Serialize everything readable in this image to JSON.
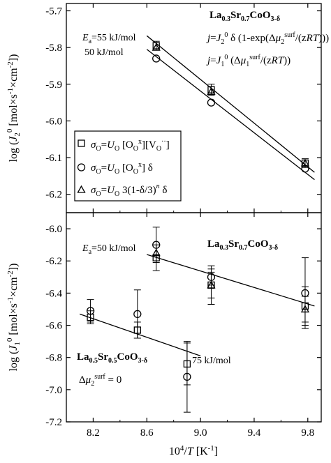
{
  "chart_data": [
    {
      "type": "scatter",
      "ylabel": "log (J₂⁰ [mol×s⁻¹×cm⁻²])",
      "xlim": [
        8.0,
        9.9
      ],
      "ylim": [
        -6.25,
        -5.68
      ],
      "y_ticks": [
        "-5.7",
        "-5.8",
        "-5.9",
        "-6.0",
        "-6.1",
        "-6.2"
      ],
      "y_tick_values": [
        -5.7,
        -5.8,
        -5.9,
        -6.0,
        -6.1,
        -6.2
      ],
      "compound": "La0.3Sr0.7CoO3-δ",
      "eq1": "j=J₂⁰ δ (1-exp(Δμ₂surf/(zRT)))",
      "eq2": "j=J₁⁰ (Δμ₁surf/(zRT))",
      "ea_labels": [
        "Ea=55 kJ/mol",
        "50 kJ/mol"
      ],
      "series": [
        {
          "name": "σO=UO[OOx][VO··]",
          "marker": "square",
          "x": [
            8.67,
            9.08,
            9.78
          ],
          "y": [
            -5.795,
            -5.915,
            -6.115
          ],
          "err": [
            0.012,
            0.015,
            0.012
          ]
        },
        {
          "name": "σO=UO[OOx] δ",
          "marker": "circle",
          "x": [
            8.67,
            9.08,
            9.78
          ],
          "y": [
            -5.83,
            -5.95,
            -6.13
          ],
          "err": [
            0,
            0,
            0
          ]
        },
        {
          "name": "σO=UO3(1-δ/3)n δ",
          "marker": "triangle",
          "x": [
            8.67,
            9.08,
            9.78
          ],
          "y": [
            -5.8,
            -5.92,
            -6.115
          ],
          "err": [
            0,
            0,
            0
          ]
        }
      ],
      "fit_lines": [
        {
          "name": "Ea=55 kJ/mol",
          "x": [
            8.6,
            9.85
          ],
          "y": [
            -5.768,
            -6.14
          ]
        },
        {
          "name": "50 kJ/mol",
          "x": [
            8.6,
            9.85
          ],
          "y": [
            -5.805,
            -6.16
          ]
        }
      ]
    },
    {
      "type": "scatter",
      "xlabel": "10⁴/T [K⁻¹]",
      "ylabel": "log (J₁⁰ [mol×s⁻¹×cm⁻²])",
      "xlim": [
        8.0,
        9.9
      ],
      "ylim": [
        -7.2,
        -5.9
      ],
      "x_ticks": [
        "8.2",
        "8.6",
        "9.0",
        "9.4",
        "9.8"
      ],
      "x_tick_values": [
        8.2,
        8.6,
        9.0,
        9.4,
        9.8
      ],
      "y_ticks": [
        "-6.0",
        "-6.2",
        "-6.4",
        "-6.6",
        "-6.8",
        "-7.0",
        "-7.2"
      ],
      "y_tick_values": [
        -6.0,
        -6.2,
        -6.4,
        -6.6,
        -6.8,
        -7.0,
        -7.2
      ],
      "compound_top": "La0.3Sr0.7CoO3-δ",
      "compound_bottom": "La0.5Sr0.5CoO3-δ",
      "delta_mu": "Δμ₂surf = 0",
      "ea_top": "Ea=50 kJ/mol",
      "ea_bottom": "75 kJ/mol",
      "series": [
        {
          "name": "σO=UO[OOx][VO··] (La0.3Sr0.7)",
          "marker": "square",
          "x": [
            8.67,
            9.08,
            9.78
          ],
          "y": [
            -6.18,
            -6.35,
            -6.48
          ],
          "err": [
            0.08,
            0.12,
            0.12
          ]
        },
        {
          "name": "σO=UO[OOx] δ (La0.3Sr0.7)",
          "marker": "circle",
          "x": [
            8.67,
            9.08,
            9.78
          ],
          "y": [
            -6.1,
            -6.3,
            -6.4
          ],
          "err": [
            0.11,
            0.05,
            0.22
          ]
        },
        {
          "name": "σO=UO3(1-δ/3)n δ (La0.3Sr0.7)",
          "marker": "triangle",
          "x": [
            8.67,
            9.08,
            9.78
          ],
          "y": [
            -6.15,
            -6.35,
            -6.5
          ],
          "err": [
            0,
            0.08,
            0.08
          ]
        },
        {
          "name": "σO=UO[OOx][VO··] (La0.5Sr0.5)",
          "marker": "square",
          "x": [
            8.18,
            8.53,
            8.9
          ],
          "y": [
            -6.55,
            -6.63,
            -6.84
          ],
          "err": [
            0.04,
            0.05,
            0.13
          ]
        },
        {
          "name": "σO=UO[OOx] δ (La0.5Sr0.5)",
          "marker": "circle",
          "x": [
            8.18,
            8.53,
            8.9
          ],
          "y": [
            -6.51,
            -6.53,
            -6.92
          ],
          "err": [
            0.07,
            0.15,
            0.22
          ]
        }
      ],
      "fit_lines": [
        {
          "name": "Ea=50 kJ/mol",
          "x": [
            8.6,
            9.85
          ],
          "y": [
            -6.16,
            -6.48
          ]
        },
        {
          "name": "75 kJ/mol",
          "x": [
            8.1,
            9.0
          ],
          "y": [
            -6.53,
            -6.79
          ]
        }
      ]
    }
  ]
}
